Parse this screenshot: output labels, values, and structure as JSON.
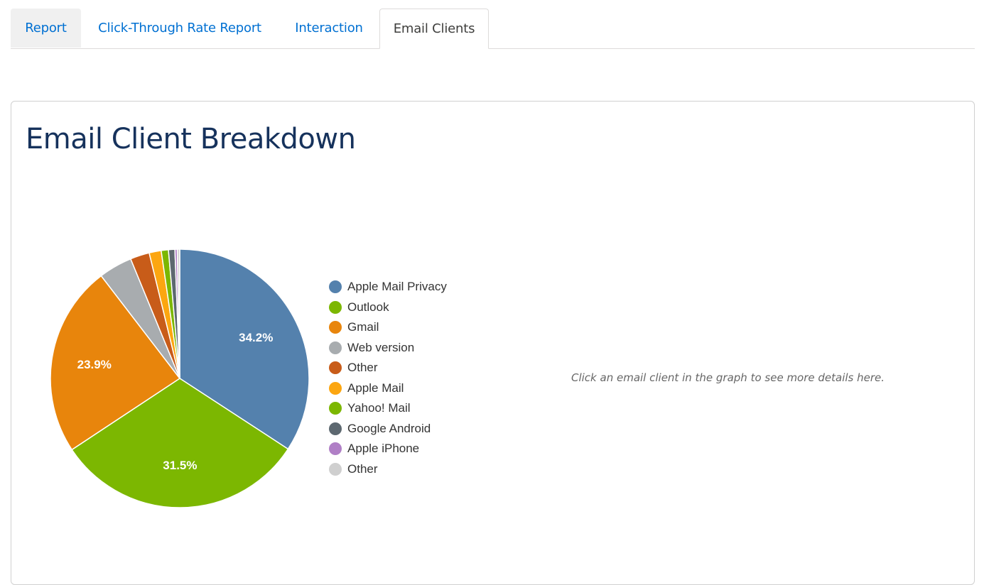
{
  "tabs": [
    {
      "label": "Report",
      "active": false
    },
    {
      "label": "Click-Through Rate Report",
      "active": false
    },
    {
      "label": "Interaction",
      "active": false
    },
    {
      "label": "Email Clients",
      "active": true
    }
  ],
  "card": {
    "title": "Email Client Breakdown",
    "hint": "Click an email client in the graph to see more details here."
  },
  "legend": [
    {
      "label": "Apple Mail Privacy",
      "color": "#5481ad"
    },
    {
      "label": "Outlook",
      "color": "#7cb701"
    },
    {
      "label": "Gmail",
      "color": "#e8850c"
    },
    {
      "label": "Web version",
      "color": "#a8acaf"
    },
    {
      "label": "Other",
      "color": "#c85c19"
    },
    {
      "label": "Apple Mail",
      "color": "#fca610"
    },
    {
      "label": "Yahoo! Mail",
      "color": "#7cb701"
    },
    {
      "label": "Google Android",
      "color": "#5d6870"
    },
    {
      "label": "Apple iPhone",
      "color": "#b07fc6"
    },
    {
      "label": "Other",
      "color": "#cfcfcf"
    }
  ],
  "chart_data": {
    "type": "pie",
    "title": "Email Client Breakdown",
    "categories": [
      "Apple Mail Privacy",
      "Outlook",
      "Gmail",
      "Web version",
      "Other",
      "Apple Mail",
      "Yahoo! Mail",
      "Google Android",
      "Apple iPhone",
      "Other"
    ],
    "values": [
      34.2,
      31.5,
      23.9,
      4.2,
      2.4,
      1.5,
      0.9,
      0.8,
      0.3,
      0.3
    ],
    "colors": [
      "#5481ad",
      "#7cb701",
      "#e8850c",
      "#a8acaf",
      "#c85c19",
      "#fca610",
      "#7cb701",
      "#5d6870",
      "#b07fc6",
      "#cfcfcf"
    ],
    "data_labels": [
      "34.2%",
      "31.5%",
      "23.9%"
    ],
    "legend_position": "right"
  }
}
